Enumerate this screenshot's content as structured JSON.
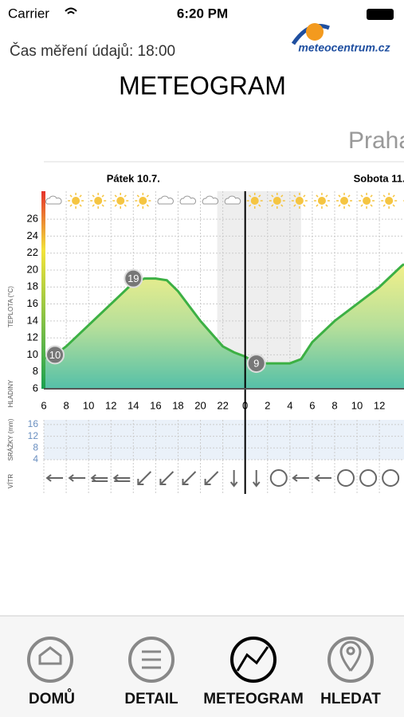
{
  "status": {
    "carrier": "Carrier",
    "time": "6:20 PM"
  },
  "header": {
    "measurement": "Čas měření údajů: 18:00",
    "logo": "meteocentrum.cz",
    "title": "METEOGRAM",
    "location": "Praha"
  },
  "meteogram": {
    "days": [
      {
        "label": "Pátek 10.7.",
        "x": 14
      },
      {
        "label": "Sobota 11.",
        "x": 36
      }
    ],
    "temp_axis_label": "TEPLOTA (°C)",
    "levels_label": "HLADINY",
    "precip_axis_label": "SRÁŽKY (mm)",
    "wind_label": "VÍTR",
    "xlim": [
      6,
      38.2
    ],
    "xticks": [
      6,
      8,
      10,
      12,
      14,
      16,
      18,
      20,
      22,
      {
        "value": 24,
        "label": "0"
      },
      {
        "value": 26,
        "label": "2"
      },
      {
        "value": 28,
        "label": "4"
      },
      {
        "value": 30,
        "label": "6"
      },
      {
        "value": 32,
        "label": "8"
      },
      {
        "value": 34,
        "label": "10"
      },
      {
        "value": 36,
        "label": "12"
      }
    ],
    "ylim": [
      6,
      29.3
    ],
    "yticks": [
      6,
      8,
      10,
      12,
      14,
      16,
      18,
      20,
      22,
      24,
      26
    ],
    "temperature": {
      "x": [
        6,
        7,
        8,
        10,
        12,
        14,
        15,
        16,
        17,
        18,
        20,
        22,
        23,
        24,
        25,
        26,
        27,
        28,
        29,
        30,
        32,
        34,
        36,
        38,
        38.2
      ],
      "values": [
        9.6,
        10,
        11,
        13.5,
        16,
        18.5,
        19,
        19,
        18.8,
        17.5,
        14,
        11,
        10.3,
        9.8,
        9,
        9,
        9,
        9,
        9.5,
        11.5,
        14,
        16,
        18,
        20.5,
        20.7
      ],
      "color": "#3cb044"
    },
    "markers": {
      "x": [
        7,
        14,
        25
      ],
      "values": [
        10,
        19,
        9
      ]
    },
    "precip_ylim": [
      4,
      17.6
    ],
    "precip_yticks": [
      4,
      8,
      12,
      16
    ]
  },
  "tabs": [
    "DOMŮ",
    "DETAIL",
    "METEOGRAM",
    "HLEDAT"
  ]
}
